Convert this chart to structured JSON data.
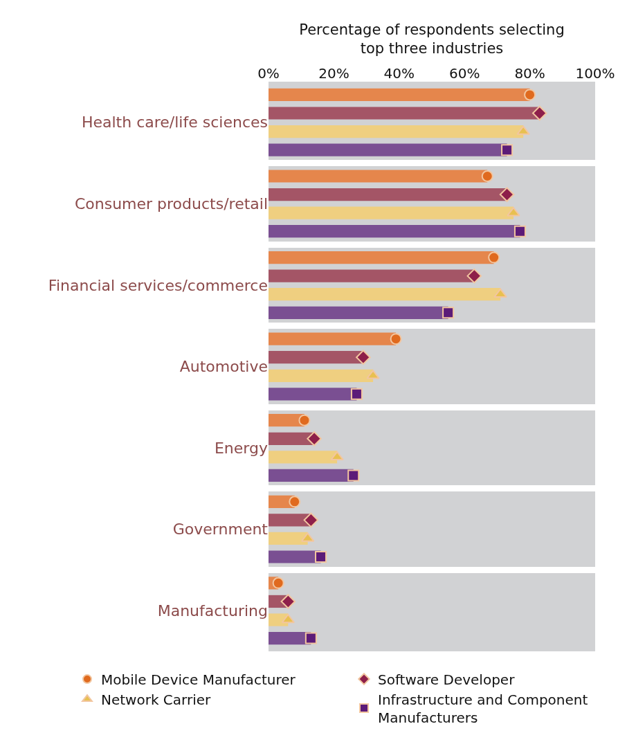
{
  "chart_data": {
    "type": "bar",
    "orientation": "horizontal",
    "xlabel": "Percentage of respondents selecting top three industries",
    "categories": [
      "Health care/life sciences",
      "Consumer products/retail",
      "Financial services/commerce",
      "Automotive",
      "Energy",
      "Government",
      "Manufacturing"
    ],
    "series": [
      {
        "color": "#e5864c",
        "values": [
          80,
          67,
          69,
          39,
          11,
          8,
          3
        ]
      },
      {
        "color": "#a45566",
        "values": [
          83,
          73,
          63,
          29,
          14,
          13,
          6
        ]
      },
      {
        "color": "#efcf80",
        "values": [
          78,
          75,
          71,
          32,
          21,
          12,
          6
        ]
      },
      {
        "color": "#7a4f92",
        "values": [
          73,
          77,
          55,
          27,
          26,
          16,
          13
        ]
      },
      {
        "type": "scatter",
        "name": "Mobile Device Manufacturer",
        "color": "#e06a1e",
        "marker": "circle",
        "values": [
          80,
          67,
          69,
          39,
          11,
          8,
          3
        ]
      },
      {
        "type": "scatter",
        "name": "Software Developer",
        "color": "#8e1f4a",
        "marker": "diamond",
        "values": [
          83,
          73,
          63,
          29,
          14,
          13,
          6
        ]
      },
      {
        "type": "scatter",
        "name": "Network Carrier",
        "color": "#e8c050",
        "marker": "triangle",
        "values": [
          78,
          75,
          71,
          32,
          21,
          12,
          6
        ]
      },
      {
        "type": "scatter",
        "name": "Infrastructure and Component Manufacturers",
        "color": "#5c1b78",
        "marker": "square",
        "values": [
          73,
          77,
          55,
          27,
          26,
          16,
          13
        ]
      }
    ],
    "xlim": [
      0,
      100
    ],
    "xticks": [
      {
        "value": 0,
        "label": "0%"
      },
      {
        "value": 20,
        "label": "20%"
      },
      {
        "value": 40,
        "label": "40%"
      },
      {
        "value": 60,
        "label": "60%"
      },
      {
        "value": 80,
        "label": "80%"
      },
      {
        "value": 100,
        "label": "100%"
      }
    ],
    "grid": false,
    "legend": "bottom"
  }
}
